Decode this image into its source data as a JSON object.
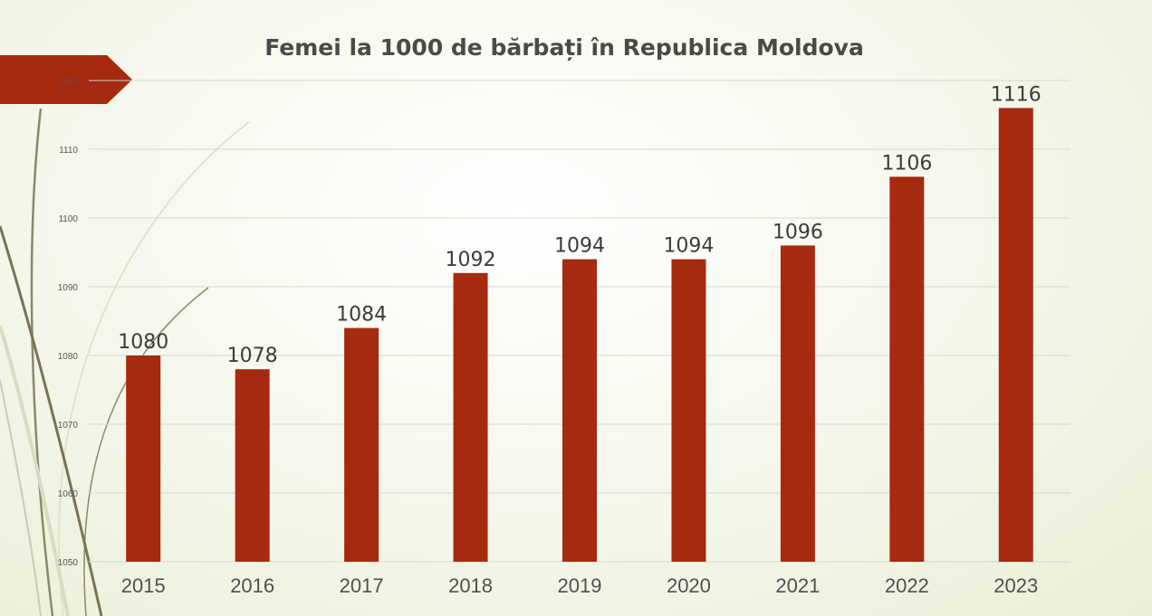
{
  "chart_data": {
    "type": "bar",
    "title": "Femei la 1000 de bărbați în Republica Moldova",
    "categories": [
      "2015",
      "2016",
      "2017",
      "2018",
      "2019",
      "2020",
      "2021",
      "2022",
      "2023"
    ],
    "values": [
      1080,
      1078,
      1084,
      1092,
      1094,
      1094,
      1096,
      1106,
      1116
    ],
    "value_labels": [
      "1080",
      "1078",
      "1084",
      "1092",
      "1094",
      "1094",
      "1096",
      "1106",
      "1116"
    ],
    "yticks": [
      "1050",
      "1060",
      "1070",
      "1080",
      "1090",
      "1100",
      "1110",
      "1120"
    ],
    "ylim": [
      1050,
      1120
    ],
    "grid": true,
    "legend": "none",
    "bar_color": "#a52a10"
  },
  "theme": {
    "accent_color": "#a52a10",
    "decor_line_color": "#8a8a6a"
  }
}
